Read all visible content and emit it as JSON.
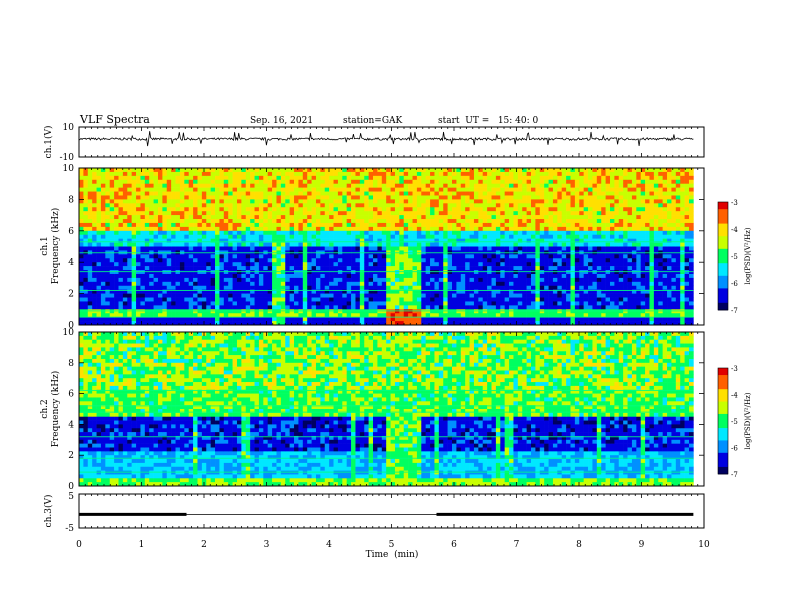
{
  "header": {
    "title": "VLF Spectra",
    "date": "Sep. 16, 2021",
    "station": "station=GAK",
    "start_ut": "start  UT =   15: 40: 0"
  },
  "colors": {
    "spectrum_scale": [
      "#000060",
      "#0000e0",
      "#0090ff",
      "#00e8ff",
      "#00ff60",
      "#c8ff00",
      "#ffe000",
      "#ff6000",
      "#e00000"
    ],
    "trace": "#000000",
    "background": "#ffffff"
  },
  "chart_data": [
    {
      "type": "line",
      "panel": "ch1-waveform",
      "ylabel": "ch.1(V)",
      "ylim": [
        -10,
        10
      ],
      "yticks": [
        "10",
        "-10"
      ],
      "x_range_min": [
        0,
        9.83
      ],
      "description_of_values": "noisy waveform near +2 V with occasional spikes"
    },
    {
      "type": "heatmap",
      "panel": "ch1-spectrogram",
      "ylabel": "ch.1\nFrequency (kHz)",
      "ylabel_lines": [
        "ch.1",
        "Frequency (kHz)"
      ],
      "ylim": [
        0,
        10
      ],
      "yticks": [
        "0",
        "2",
        "4",
        "6",
        "8",
        "10"
      ],
      "colorbar": {
        "label": "log(PSD)(V²/Hz)",
        "range": [
          -7,
          -3
        ],
        "ticks": [
          "-3",
          "-4",
          "-5",
          "-6",
          "-7"
        ]
      }
    },
    {
      "type": "heatmap",
      "panel": "ch2-spectrogram",
      "ylabel_lines": [
        "ch.2",
        "Frequency (kHz)"
      ],
      "ylim": [
        0,
        10
      ],
      "yticks": [
        "0",
        "2",
        "4",
        "6",
        "8",
        "10"
      ],
      "colorbar": {
        "label": "log(PSD)(V²/Hz)",
        "range": [
          -7,
          -3
        ],
        "ticks": [
          "-3",
          "-4",
          "-5",
          "-6",
          "-7"
        ]
      }
    },
    {
      "type": "line",
      "panel": "ch3-trace",
      "ylabel": "ch.3(V)",
      "ylim": [
        -5,
        5
      ],
      "yticks": [
        "5",
        "-5"
      ],
      "segments": [
        {
          "x": [
            0,
            1.72
          ],
          "y": -1.0
        },
        {
          "x": [
            5.72,
            9.83
          ],
          "y": -1.0
        }
      ],
      "xlabel": "Time  (min)",
      "xlim": [
        0,
        10
      ],
      "xticks": [
        "0",
        "1",
        "2",
        "3",
        "4",
        "5",
        "6",
        "7",
        "8",
        "9",
        "10"
      ]
    }
  ]
}
